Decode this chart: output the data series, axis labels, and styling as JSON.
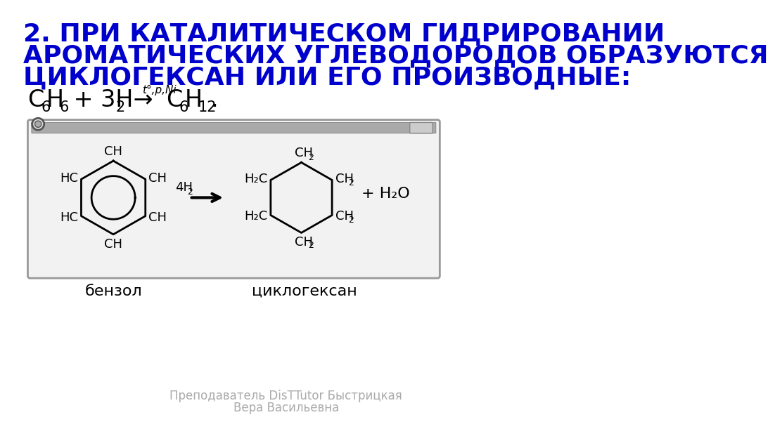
{
  "title_line1": "2. ПРИ КАТАЛИТИЧЕСКОМ ГИДРИРОВАНИИ",
  "title_line2": "АРОМАТИЧЕСКИХ УГЛЕВОДОРОДОВ ОБРАЗУЮТСЯ",
  "title_line3": "ЦИКЛОГЕКСАН ИЛИ ЕГО ПРОИЗВОДНЫЕ:",
  "title_color": "#0000CC",
  "title_fontsize": 26,
  "bg_color": "#FFFFFF",
  "equation_condition": "t°,p,Ni",
  "label_benzol": "бензол",
  "label_cyclohexane": "циклогексан",
  "footer_line1": "Преподаватель DisTTutor Быстрицкая",
  "footer_line2": "Вера Васильевна",
  "footer_color": "#AAAAAA",
  "footer_fontsize": 12
}
